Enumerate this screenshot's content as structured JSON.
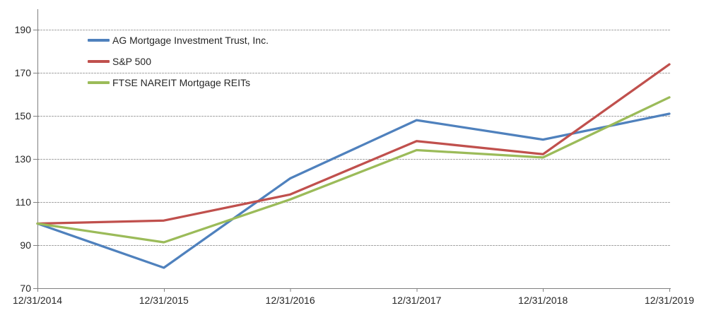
{
  "chart_data": {
    "type": "line",
    "title": "",
    "xlabel": "",
    "ylabel": "",
    "x_categories": [
      "12/31/2014",
      "12/31/2015",
      "12/31/2016",
      "12/31/2017",
      "12/31/2018",
      "12/31/2019"
    ],
    "y_ticks": [
      70,
      90,
      110,
      130,
      150,
      170,
      190
    ],
    "ylim": [
      70,
      200
    ],
    "grid": "horizontal-dashed",
    "legend_position": "top-left-inside",
    "series": [
      {
        "name": "AG Mortgage Investment Trust, Inc.",
        "color": "#4F81BD",
        "values": [
          100,
          79.5,
          121,
          148,
          139,
          151
        ]
      },
      {
        "name": "S&P 500",
        "color": "#C0504D",
        "values": [
          100,
          101.4,
          113.5,
          138.3,
          132.2,
          173.9
        ]
      },
      {
        "name": "FTSE NAREIT Mortgage REITs",
        "color": "#9BBB59",
        "values": [
          100,
          91.3,
          111.2,
          134.1,
          130.7,
          158.6
        ]
      }
    ],
    "colors": {
      "axis": "#808080",
      "gridline": "#a6a6a6",
      "label_text": "#262626",
      "background": "#ffffff"
    }
  }
}
